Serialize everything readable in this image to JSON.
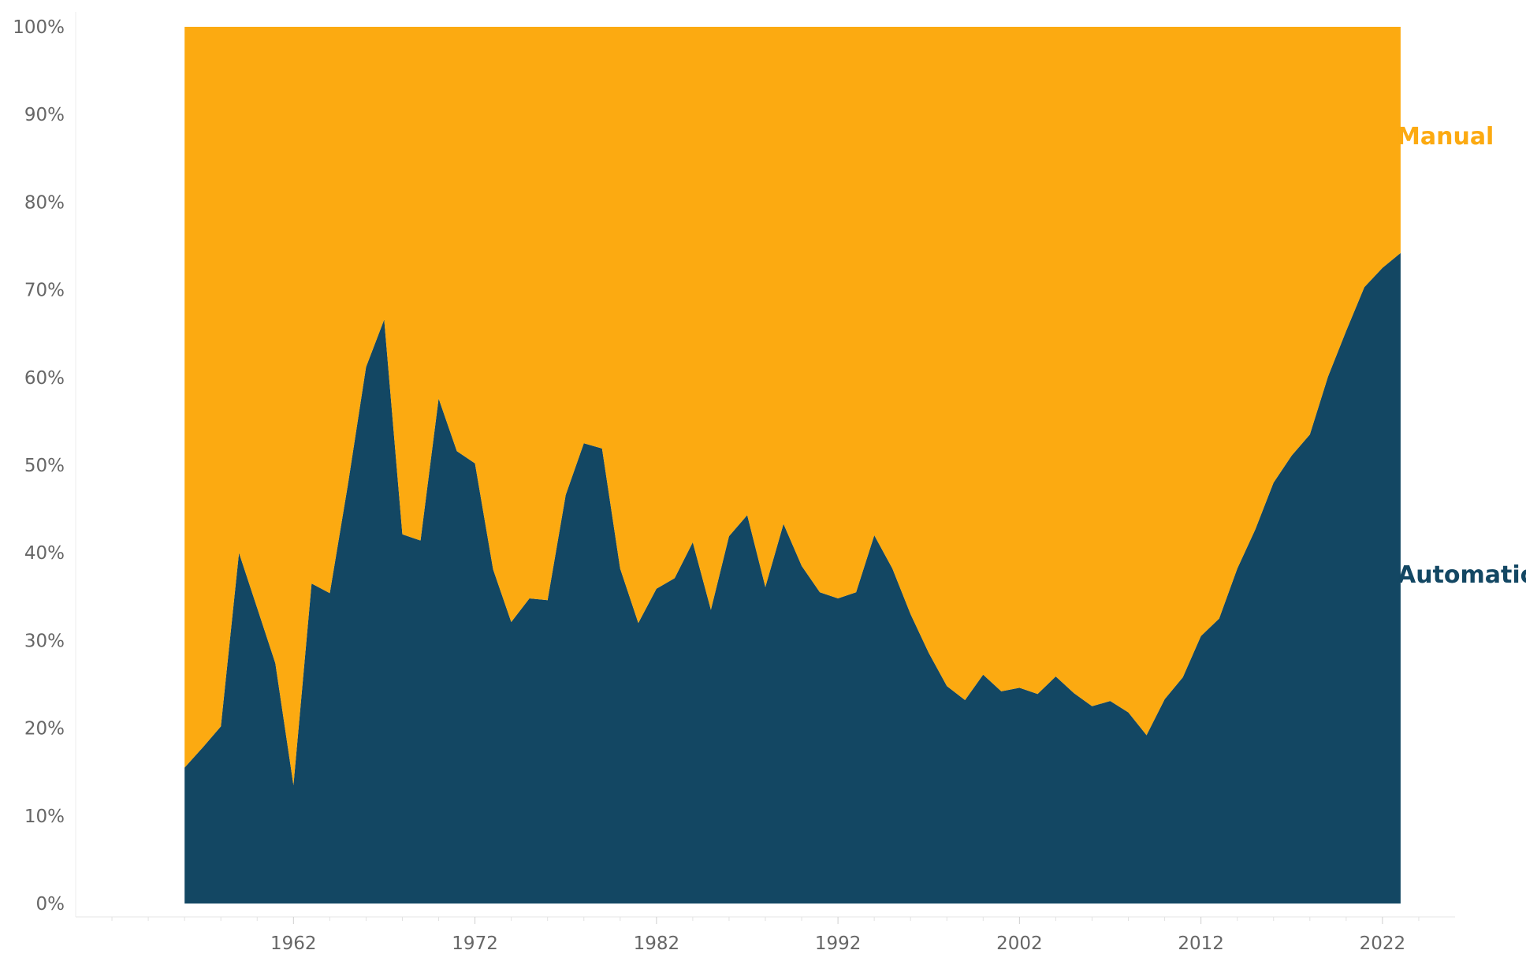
{
  "chart_data": {
    "type": "area",
    "stacked": "percent",
    "x": [
      1956,
      1957,
      1958,
      1959,
      1960,
      1961,
      1962,
      1963,
      1964,
      1965,
      1966,
      1967,
      1968,
      1969,
      1970,
      1971,
      1972,
      1973,
      1974,
      1975,
      1976,
      1977,
      1978,
      1979,
      1980,
      1981,
      1982,
      1983,
      1984,
      1985,
      1986,
      1987,
      1988,
      1989,
      1990,
      1991,
      1992,
      1993,
      1994,
      1995,
      1996,
      1997,
      1998,
      1999,
      2000,
      2001,
      2002,
      2003,
      2004,
      2005,
      2006,
      2007,
      2008,
      2009,
      2010,
      2011,
      2012,
      2013,
      2014,
      2015,
      2016,
      2017,
      2018,
      2019,
      2020,
      2021,
      2022,
      2023
    ],
    "series": [
      {
        "name": "Automatic",
        "color": "#134763",
        "values": [
          15.5,
          17.8,
          20.2,
          40.0,
          33.7,
          27.4,
          13.5,
          36.5,
          35.4,
          47.8,
          61.2,
          66.6,
          42.1,
          41.4,
          57.6,
          51.6,
          50.2,
          38.1,
          32.1,
          34.8,
          34.6,
          46.6,
          52.5,
          51.9,
          38.2,
          32.0,
          35.9,
          37.1,
          41.2,
          33.5,
          41.9,
          44.3,
          36.1,
          43.3,
          38.5,
          35.5,
          34.8,
          35.5,
          42.0,
          38.2,
          33.0,
          28.6,
          24.8,
          23.2,
          26.1,
          24.2,
          24.6,
          23.9,
          25.9,
          24.0,
          22.5,
          23.1,
          21.8,
          19.2,
          23.3,
          25.8,
          30.5,
          32.5,
          38.2,
          42.7,
          48.0,
          51.1,
          53.5,
          60.1,
          65.3,
          70.3,
          72.5,
          74.2
        ]
      },
      {
        "name": "Manual",
        "color": "#FCAA11",
        "values": [
          84.5,
          82.2,
          79.8,
          60.0,
          66.3,
          72.6,
          86.5,
          63.5,
          64.6,
          52.2,
          38.8,
          33.4,
          57.9,
          58.6,
          42.4,
          48.4,
          49.8,
          61.9,
          67.9,
          65.2,
          65.4,
          53.4,
          47.5,
          48.1,
          61.8,
          68.0,
          64.1,
          62.9,
          58.8,
          66.5,
          58.1,
          55.7,
          63.9,
          56.7,
          61.5,
          64.5,
          65.2,
          64.5,
          58.0,
          61.8,
          67.0,
          71.4,
          75.2,
          76.8,
          73.9,
          75.8,
          75.4,
          76.1,
          74.1,
          76.0,
          77.5,
          76.9,
          78.2,
          80.8,
          76.7,
          74.2,
          69.5,
          67.5,
          61.8,
          57.3,
          52.0,
          48.9,
          46.5,
          39.9,
          34.7,
          29.7,
          27.5,
          25.8
        ]
      }
    ],
    "ylim": [
      0,
      100
    ],
    "yticks": [
      0,
      10,
      20,
      30,
      40,
      50,
      60,
      70,
      80,
      90,
      100
    ],
    "ytick_labels": [
      "0%",
      "10%",
      "20%",
      "30%",
      "40%",
      "50%",
      "60%",
      "70%",
      "80%",
      "90%",
      "100%"
    ],
    "xlim": [
      1950,
      2026
    ],
    "xticks": [
      1962,
      1972,
      1982,
      1992,
      2002,
      2012,
      2022
    ],
    "xtick_labels": [
      "1962",
      "1972",
      "1982",
      "1992",
      "2002",
      "2012",
      "2022"
    ],
    "title": "",
    "xlabel": "",
    "ylabel": "",
    "grid": false,
    "legend": "direct-labels-right"
  }
}
